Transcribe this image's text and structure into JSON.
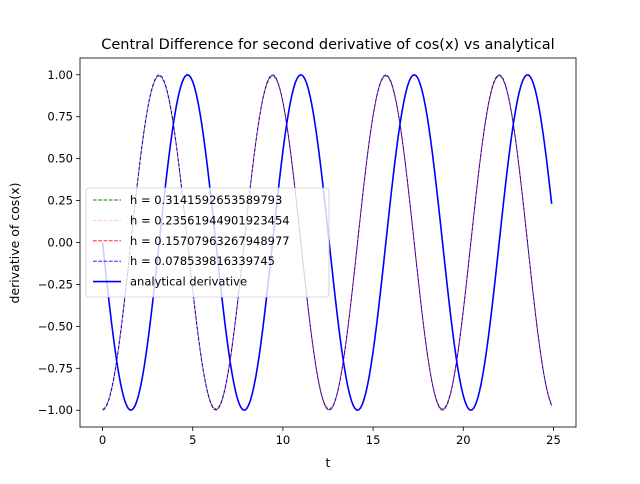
{
  "chart_data": {
    "type": "line",
    "title": "Central Difference for second derivative of cos(x) vs analytical",
    "xlabel": "t",
    "ylabel": "derivative of cos(x)",
    "xlim": [
      -1.25,
      26.25
    ],
    "ylim": [
      -1.1,
      1.1
    ],
    "xticks": [
      0,
      5,
      10,
      15,
      20,
      25
    ],
    "xtick_labels": [
      "0",
      "5",
      "10",
      "15",
      "20",
      "25"
    ],
    "yticks": [
      -1.0,
      -0.75,
      -0.5,
      -0.25,
      0.0,
      0.25,
      0.5,
      0.75,
      1.0
    ],
    "ytick_labels": [
      "−1.00",
      "−0.75",
      "−0.50",
      "−0.25",
      "0.00",
      "0.25",
      "0.50",
      "0.75",
      "1.00"
    ],
    "grid": false,
    "legend_position": "center-left",
    "x_range": [
      0,
      24.9
    ],
    "x_step": 0.1,
    "series": [
      {
        "name": "h = 0.3141592653589793",
        "h": 0.3141592653589793,
        "kind": "central-difference",
        "color": "#008000",
        "dashed": true
      },
      {
        "name": "h = 0.23561944901923454",
        "h": 0.23561944901923454,
        "kind": "central-difference",
        "color": "#ffc0cb",
        "dashed": true
      },
      {
        "name": "h = 0.15707963267948977",
        "h": 0.15707963267948977,
        "kind": "central-difference",
        "color": "#ff0000",
        "dashed": true
      },
      {
        "name": "h = 0.078539816339745",
        "h": 0.078539816339745,
        "kind": "central-difference",
        "color": "#0000ff",
        "dashed": true
      },
      {
        "name": "analytical derivative",
        "kind": "analytical",
        "color": "#0000ff",
        "dashed": false
      }
    ]
  }
}
